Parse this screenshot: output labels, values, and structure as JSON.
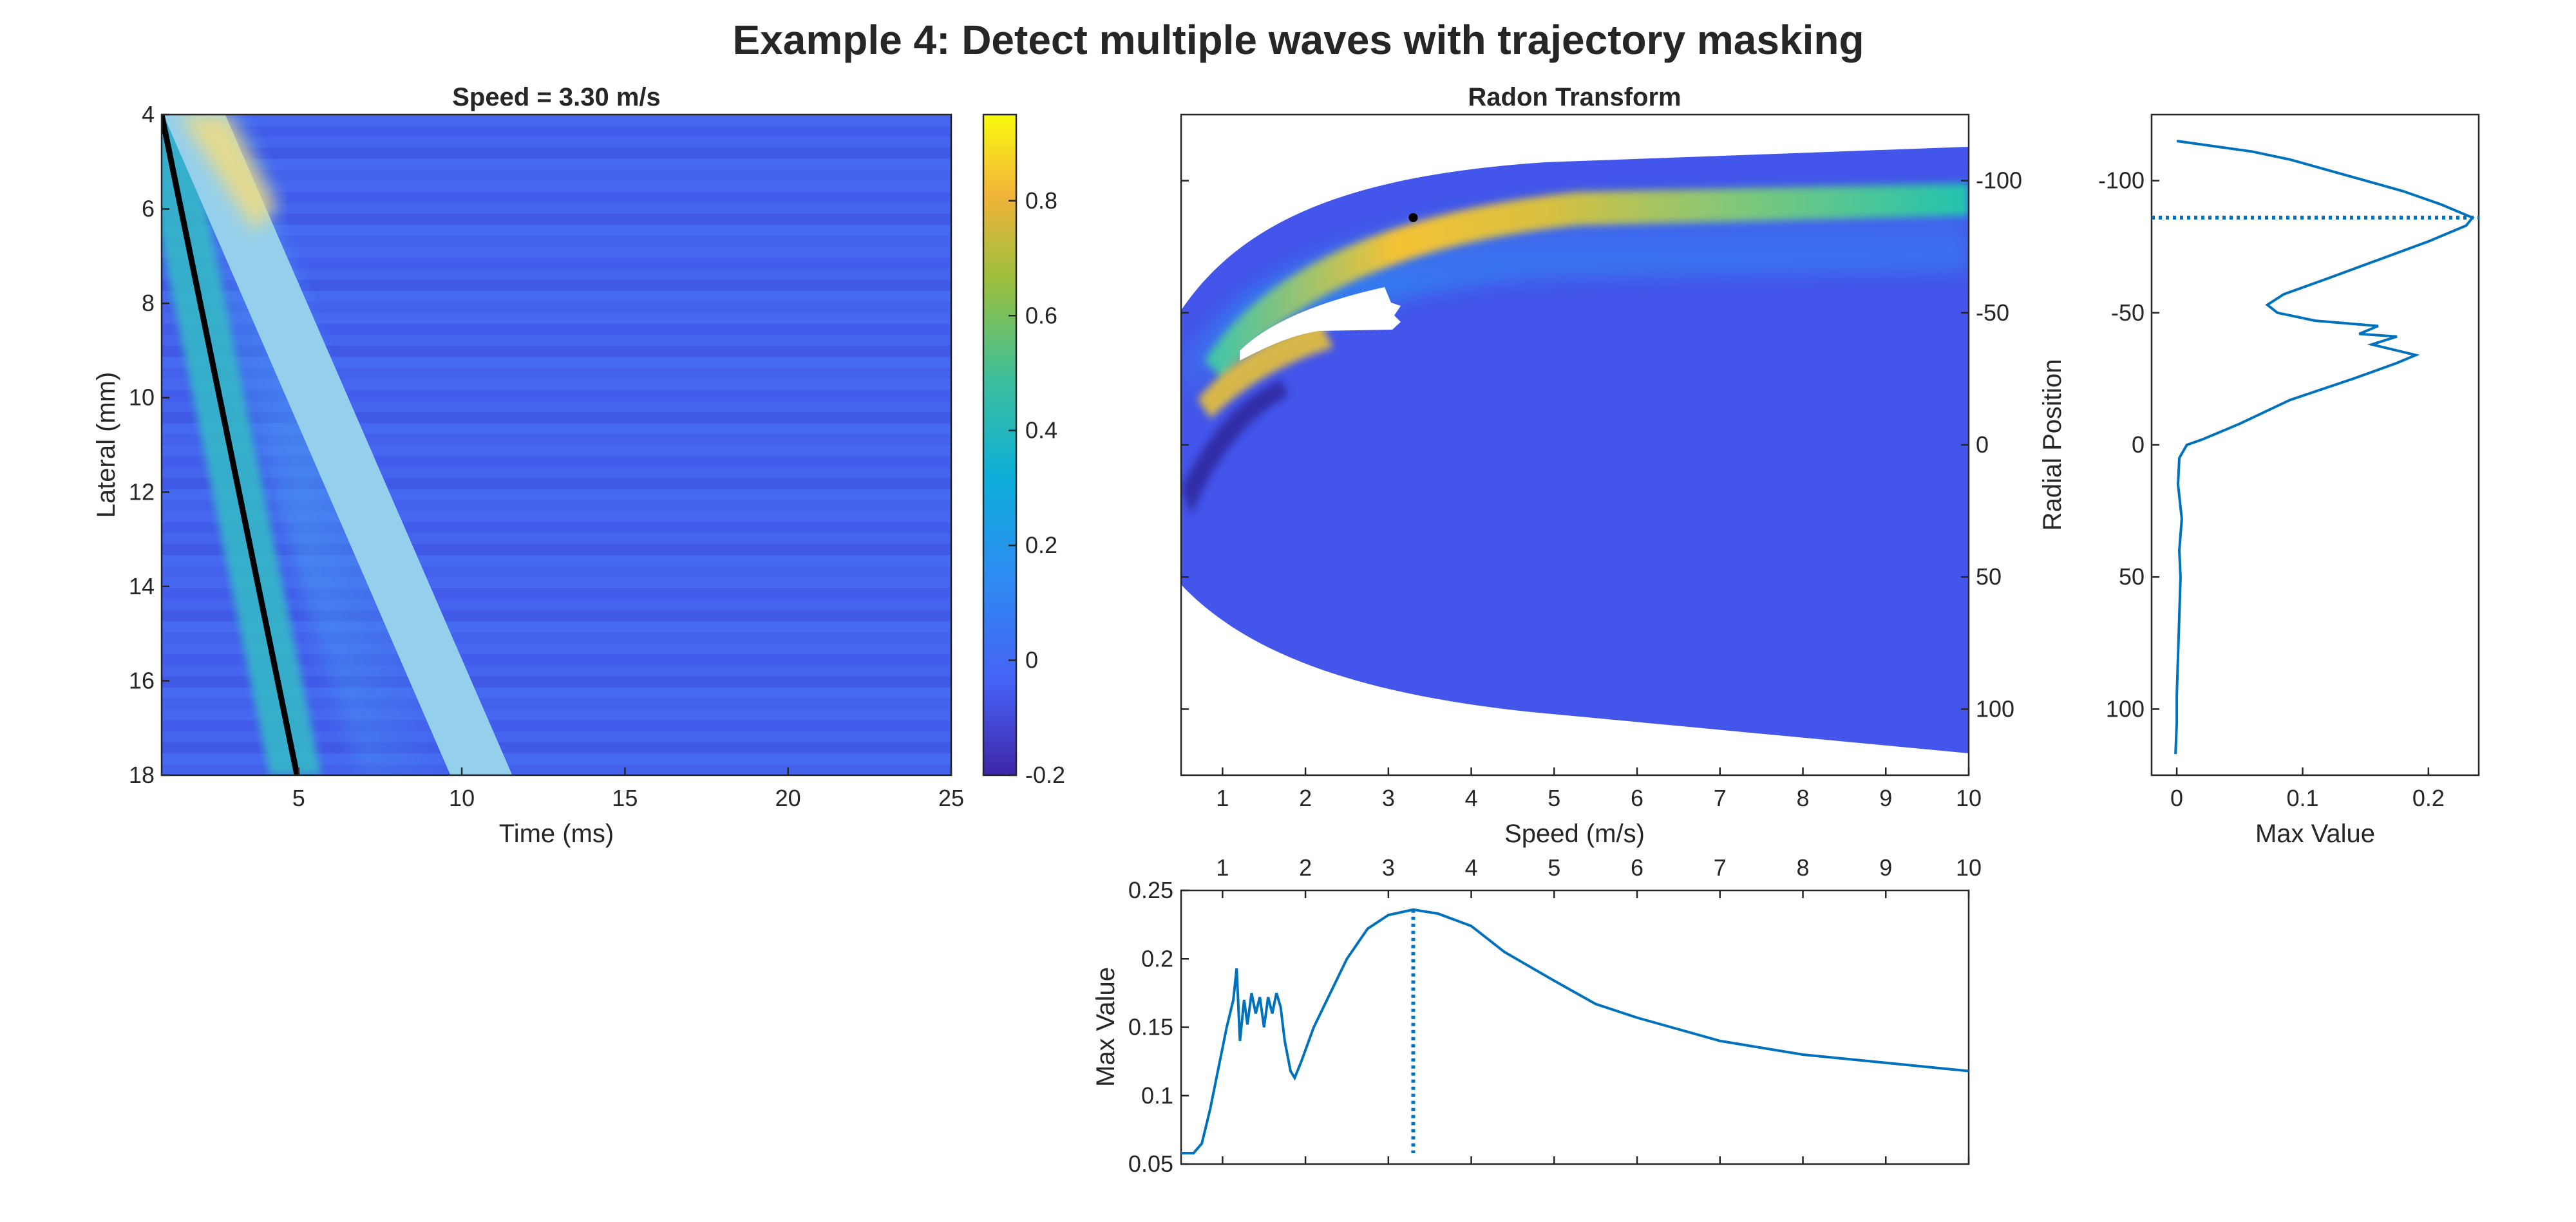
{
  "figure": {
    "title": "Example 4: Detect multiple waves with trajectory masking"
  },
  "colors": {
    "line": "#0072BD",
    "marker": "#000000",
    "axis": "#262626",
    "trajectory": "#000000"
  },
  "chart_data": [
    {
      "type": "heatmap",
      "title": "Speed = 3.30 m/s",
      "xlabel": "Time (ms)",
      "ylabel": "Lateral (mm)",
      "xlim": [
        0.8,
        25
      ],
      "ylim": [
        18,
        4
      ],
      "y_reversed": true,
      "xticks": [
        5,
        10,
        15,
        20,
        25
      ],
      "yticks": [
        4,
        6,
        8,
        10,
        12,
        14,
        16,
        18
      ],
      "colormap": "parula",
      "colorbar": {
        "clim": [
          -0.2,
          0.95
        ],
        "ticks": [
          -0.2,
          0,
          0.2,
          0.4,
          0.6,
          0.8
        ]
      },
      "bands": [
        {
          "description": "wave front",
          "start": [
            0.8,
            4
          ],
          "end": [
            4.9,
            18
          ],
          "peak": 0.75
        },
        {
          "description": "masked trajectory",
          "start": [
            1.8,
            4
          ],
          "end": [
            10.6,
            18
          ],
          "peak": 0.3
        }
      ],
      "trajectory_line": {
        "x": [
          0.8,
          4.95
        ],
        "y": [
          4,
          18
        ]
      }
    },
    {
      "type": "heatmap",
      "title": "Radon Transform",
      "xlabel": "Speed (m/s)",
      "ylabel": "Radial Position",
      "xlim": [
        0.5,
        10
      ],
      "ylim": [
        125,
        -125
      ],
      "y_reversed": true,
      "y_axis_location": "right",
      "xticks": [
        1,
        2,
        3,
        4,
        5,
        6,
        7,
        8,
        9,
        10
      ],
      "yticks": [
        -100,
        -50,
        0,
        50,
        100
      ],
      "colormap": "parula",
      "peak_marker": {
        "speed": 3.3,
        "radial": -86
      }
    },
    {
      "type": "line",
      "title": "",
      "xlabel": "Max Value",
      "ylabel": "",
      "xlim": [
        -0.02,
        0.24
      ],
      "ylim": [
        125,
        -125
      ],
      "y_reversed": true,
      "xticks": [
        0,
        0.1,
        0.2
      ],
      "yticks": [
        -100,
        -50,
        0,
        50,
        100
      ],
      "series": [
        {
          "values": [
            [
              0.0,
              -115
            ],
            [
              0.03,
              -113
            ],
            [
              0.06,
              -111
            ],
            [
              0.09,
              -108
            ],
            [
              0.12,
              -104
            ],
            [
              0.15,
              -100
            ],
            [
              0.18,
              -96
            ],
            [
              0.21,
              -91
            ],
            [
              0.23,
              -87
            ],
            [
              0.235,
              -86
            ],
            [
              0.23,
              -83
            ],
            [
              0.2,
              -77
            ],
            [
              0.16,
              -70
            ],
            [
              0.12,
              -63
            ],
            [
              0.085,
              -57
            ],
            [
              0.072,
              -53
            ],
            [
              0.08,
              -50
            ],
            [
              0.11,
              -47
            ],
            [
              0.16,
              -45
            ],
            [
              0.145,
              -42
            ],
            [
              0.175,
              -41
            ],
            [
              0.155,
              -38
            ],
            [
              0.19,
              -34
            ],
            [
              0.175,
              -31
            ],
            [
              0.14,
              -25
            ],
            [
              0.09,
              -17
            ],
            [
              0.05,
              -8
            ],
            [
              0.02,
              -2
            ],
            [
              0.008,
              0
            ],
            [
              0.002,
              5
            ],
            [
              0.001,
              15
            ],
            [
              0.004,
              28
            ],
            [
              0.002,
              40
            ],
            [
              0.003,
              50
            ],
            [
              0.002,
              65
            ],
            [
              0.001,
              80
            ],
            [
              0.0,
              95
            ],
            [
              0.0,
              105
            ],
            [
              -0.001,
              117
            ]
          ]
        }
      ],
      "marker_line": {
        "y": -86,
        "style": "dotted"
      }
    },
    {
      "type": "line",
      "title": "",
      "xlabel": "",
      "ylabel": "Max Value",
      "x_axis_location": "top",
      "xlim": [
        0.5,
        10
      ],
      "ylim": [
        0.05,
        0.25
      ],
      "xticks": [
        1,
        2,
        3,
        4,
        5,
        6,
        7,
        8,
        9,
        10
      ],
      "yticks": [
        0.05,
        0.1,
        0.15,
        0.2,
        0.25
      ],
      "series": [
        {
          "values": [
            [
              0.5,
              0.058
            ],
            [
              0.65,
              0.058
            ],
            [
              0.75,
              0.065
            ],
            [
              0.85,
              0.09
            ],
            [
              0.95,
              0.12
            ],
            [
              1.05,
              0.15
            ],
            [
              1.13,
              0.17
            ],
            [
              1.17,
              0.193
            ],
            [
              1.21,
              0.14
            ],
            [
              1.26,
              0.17
            ],
            [
              1.3,
              0.152
            ],
            [
              1.35,
              0.175
            ],
            [
              1.4,
              0.16
            ],
            [
              1.45,
              0.172
            ],
            [
              1.5,
              0.15
            ],
            [
              1.55,
              0.172
            ],
            [
              1.6,
              0.16
            ],
            [
              1.65,
              0.175
            ],
            [
              1.7,
              0.165
            ],
            [
              1.75,
              0.14
            ],
            [
              1.82,
              0.118
            ],
            [
              1.87,
              0.113
            ],
            [
              1.95,
              0.125
            ],
            [
              2.1,
              0.15
            ],
            [
              2.3,
              0.175
            ],
            [
              2.5,
              0.2
            ],
            [
              2.75,
              0.222
            ],
            [
              3.0,
              0.232
            ],
            [
              3.3,
              0.236
            ],
            [
              3.6,
              0.233
            ],
            [
              4.0,
              0.224
            ],
            [
              4.4,
              0.205
            ],
            [
              5.0,
              0.184
            ],
            [
              5.5,
              0.167
            ],
            [
              6.0,
              0.157
            ],
            [
              7.0,
              0.14
            ],
            [
              8.0,
              0.13
            ],
            [
              9.0,
              0.124
            ],
            [
              10.0,
              0.118
            ]
          ]
        }
      ],
      "marker_line": {
        "x": 3.3,
        "style": "dotted"
      }
    }
  ]
}
